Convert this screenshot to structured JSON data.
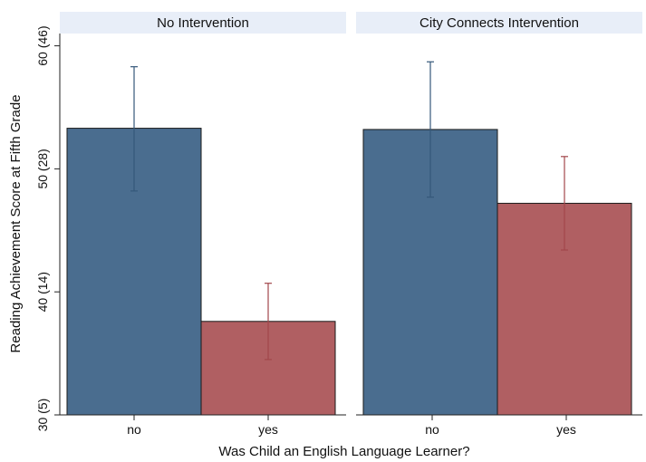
{
  "chart_data": {
    "type": "bar",
    "ylabel": "Reading Achievement Score at Fifth Grade",
    "xlabel": "Was Child an English Language Learner?",
    "ylim": [
      30,
      61
    ],
    "yticks": [
      {
        "value": 30,
        "label": "30 (5)"
      },
      {
        "value": 40,
        "label": "40 (14)"
      },
      {
        "value": 50,
        "label": "50 (28)"
      },
      {
        "value": 60,
        "label": "60 (46)"
      }
    ],
    "categories": [
      "no",
      "yes"
    ],
    "colors": {
      "no": "#4a6d8f",
      "yes": "#b05f62",
      "panel_header": "#e8eef8"
    },
    "grid": false,
    "panels": [
      {
        "title": "No Intervention",
        "bars": [
          {
            "category": "no",
            "value": 53.3,
            "ci_low": 48.2,
            "ci_high": 58.3
          },
          {
            "category": "yes",
            "value": 37.6,
            "ci_low": 34.5,
            "ci_high": 40.7
          }
        ]
      },
      {
        "title": "City Connects Intervention",
        "bars": [
          {
            "category": "no",
            "value": 53.2,
            "ci_low": 47.7,
            "ci_high": 58.7
          },
          {
            "category": "yes",
            "value": 47.2,
            "ci_low": 43.4,
            "ci_high": 51.0
          }
        ]
      }
    ]
  }
}
